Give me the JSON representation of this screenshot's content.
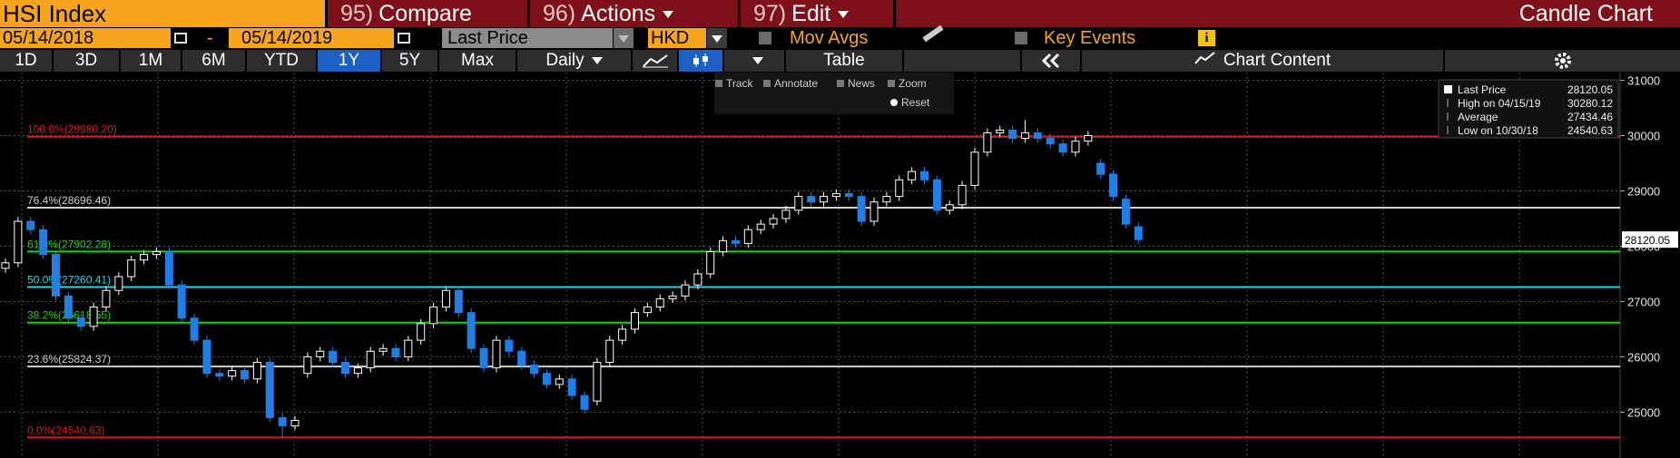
{
  "header": {
    "security": "HSI Index",
    "menus": [
      {
        "number": "95)",
        "label": "Compare"
      },
      {
        "number": "96)",
        "label": "Actions"
      },
      {
        "number": "97)",
        "label": "Edit"
      }
    ],
    "view_name": "Candle Chart"
  },
  "controls": {
    "start_date": "05/14/2018",
    "separator": "-",
    "end_date": "05/14/2019",
    "field": "Last Price",
    "currency": "HKD",
    "mov_avgs": "Mov Avgs",
    "key_events": "Key Events"
  },
  "toolbar": {
    "ranges": [
      "1D",
      "3D",
      "1M",
      "6M",
      "YTD",
      "1Y",
      "5Y",
      "Max"
    ],
    "frequency": "Daily",
    "table": "Table",
    "chart_content": "Chart Content"
  },
  "chart_tools": [
    "Track",
    "Annotate",
    "News",
    "Zoom",
    "Reset"
  ],
  "chart_data": {
    "type": "candlestick",
    "open": [
      27600,
      27700,
      28450,
      28300,
      27850,
      27100,
      26700,
      26550,
      26900,
      27200,
      27450,
      27750,
      27850,
      27900,
      27300,
      26700,
      26300,
      25700,
      25650,
      25750,
      25600,
      25900,
      24900,
      24750,
      25700,
      26000,
      26100,
      25900,
      25700,
      25800,
      26100,
      26150,
      26000,
      26300,
      26600,
      26900,
      27200,
      26800,
      26150,
      25800,
      26300,
      26100,
      25850,
      25700,
      25500,
      25600,
      25300,
      25200,
      25900,
      26300,
      26500,
      26800,
      26900,
      27050,
      27100,
      27300,
      27500,
      27900,
      28100,
      28050,
      28300,
      28400,
      28500,
      28650,
      28900,
      28800,
      28900,
      28950,
      28900,
      28450,
      28800,
      28900,
      29200,
      29350,
      29200,
      28650,
      28750,
      29100,
      29700,
      30050,
      30100,
      29950,
      30050,
      29950,
      29850,
      29700,
      29900,
      29500,
      29300,
      28850,
      28350
    ],
    "high": [
      27780,
      28530,
      28530,
      28380,
      27930,
      27180,
      26780,
      26980,
      27280,
      27530,
      27830,
      27930,
      27980,
      27980,
      27380,
      26780,
      26380,
      25780,
      25830,
      25830,
      25980,
      25980,
      24980,
      24930,
      26080,
      26180,
      26180,
      25980,
      25880,
      26180,
      26230,
      26230,
      26380,
      26680,
      26980,
      27280,
      27280,
      26880,
      26230,
      26380,
      26380,
      26180,
      25930,
      25780,
      25680,
      25680,
      25380,
      25980,
      26380,
      26580,
      26880,
      26980,
      27130,
      27180,
      27380,
      27580,
      27980,
      28180,
      28180,
      28380,
      28480,
      28580,
      28730,
      28980,
      28980,
      28980,
      29030,
      29030,
      28980,
      28880,
      28980,
      29280,
      29430,
      29430,
      29280,
      28830,
      29180,
      29780,
      30130,
      30180,
      30180,
      30280.12,
      30130,
      30030,
      29930,
      29980,
      30080,
      29580,
      29380,
      28930,
      28430
    ],
    "low": [
      27520,
      27620,
      28220,
      27770,
      27020,
      26620,
      26470,
      26470,
      26820,
      27120,
      27370,
      27670,
      27770,
      27220,
      26620,
      26220,
      25620,
      25570,
      25570,
      25520,
      25520,
      24820,
      24540.63,
      24670,
      25620,
      25920,
      25820,
      25620,
      25620,
      25720,
      26020,
      25920,
      25920,
      26220,
      26520,
      26820,
      26720,
      26070,
      25720,
      25720,
      26020,
      25770,
      25620,
      25420,
      25420,
      25220,
      24970,
      25120,
      25820,
      26220,
      26420,
      26720,
      26820,
      26970,
      27020,
      27220,
      27420,
      27820,
      27970,
      27970,
      28220,
      28320,
      28420,
      28570,
      28720,
      28720,
      28820,
      28820,
      28370,
      28370,
      28720,
      28820,
      29120,
      29120,
      28570,
      28570,
      28670,
      29020,
      29620,
      29970,
      29870,
      29870,
      29870,
      29770,
      29620,
      29620,
      29820,
      29220,
      28820,
      28320,
      28040
    ],
    "close": [
      27700,
      28450,
      28300,
      27850,
      27100,
      26700,
      26550,
      26900,
      27200,
      27450,
      27750,
      27850,
      27900,
      27300,
      26700,
      26300,
      25700,
      25650,
      25750,
      25600,
      25900,
      24900,
      24750,
      24850,
      26000,
      26100,
      25900,
      25700,
      25800,
      26100,
      26150,
      26000,
      26300,
      26600,
      26900,
      27200,
      26800,
      26150,
      25800,
      26300,
      26100,
      25850,
      25700,
      25500,
      25600,
      25300,
      25050,
      25900,
      26300,
      26500,
      26800,
      26900,
      27050,
      27100,
      27300,
      27500,
      27900,
      28100,
      28050,
      28300,
      28400,
      28500,
      28650,
      28900,
      28800,
      28900,
      28950,
      28900,
      28450,
      28800,
      28900,
      29200,
      29350,
      29200,
      28650,
      28750,
      29100,
      29700,
      30050,
      30100,
      29950,
      30050,
      29950,
      29850,
      29700,
      29900,
      30000,
      29300,
      28900,
      28400,
      28120.05
    ],
    "up_color": "#ffffff",
    "down_color": "#1f7fe6",
    "ylim": [
      24170,
      31140
    ],
    "yticks": [
      25000,
      26000,
      27000,
      28000,
      29000,
      30000,
      31000
    ],
    "grid": true,
    "last_price": 28120.05,
    "levels": [
      {
        "label": "100.0%(29980.20)",
        "value": 29980.2,
        "color": "#e3141b"
      },
      {
        "label": "76.4%(28696.46)",
        "value": 28696.46,
        "color": "#cfcfcf"
      },
      {
        "label": "61.8%(27902.28)",
        "value": 27902.28,
        "color": "#1fd01f"
      },
      {
        "label": "50.0%(27260.41)",
        "value": 27260.41,
        "color": "#25d4e6"
      },
      {
        "label": "38.2%(26618.55)",
        "value": 26618.55,
        "color": "#1fd01f"
      },
      {
        "label": "23.6%(25824.37)",
        "value": 25824.37,
        "color": "#cfcfcf"
      },
      {
        "label": "0.0%(24540.63)",
        "value": 24540.63,
        "color": "#e3141b"
      }
    ],
    "legend": [
      {
        "label": "Last Price",
        "value": "28120.05"
      },
      {
        "label": "High on 04/15/19",
        "value": "30280.12"
      },
      {
        "label": "Average",
        "value": "27434.46"
      },
      {
        "label": "Low on 10/30/18",
        "value": "24540.63"
      }
    ]
  }
}
